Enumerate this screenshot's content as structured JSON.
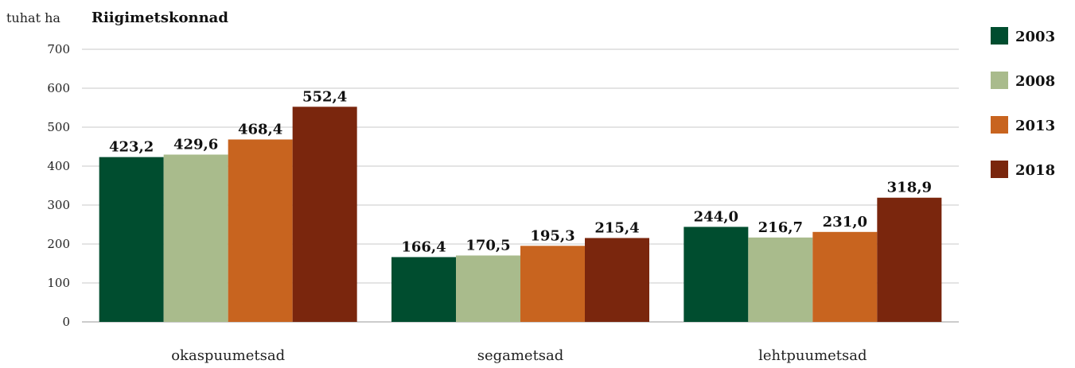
{
  "chart_data": {
    "type": "bar",
    "title": "Riigimetskonnad",
    "ylabel": "tuhat ha",
    "xlabel": "",
    "ylim": [
      0,
      700
    ],
    "yticks": [
      "0",
      "100",
      "200",
      "300",
      "400",
      "500",
      "600",
      "700"
    ],
    "grid": true,
    "legend_position": "right",
    "categories": [
      "okaspuumetsad",
      "segametsad",
      "lehtpuumetsad"
    ],
    "series": [
      {
        "name": "2003",
        "color": "#004d2f",
        "values": [
          423.2,
          166.4,
          244.0
        ],
        "labels": [
          "423,2",
          "166,4",
          "244,0"
        ]
      },
      {
        "name": "2008",
        "color": "#a9bb8c",
        "values": [
          429.6,
          170.5,
          216.7
        ],
        "labels": [
          "429,6",
          "170,5",
          "216,7"
        ]
      },
      {
        "name": "2013",
        "color": "#c8641f",
        "values": [
          468.4,
          195.3,
          231.0
        ],
        "labels": [
          "468,4",
          "195,3",
          "231,0"
        ]
      },
      {
        "name": "2018",
        "color": "#7a260d",
        "values": [
          552.4,
          215.4,
          318.9
        ],
        "labels": [
          "552,4",
          "215,4",
          "318,9"
        ]
      }
    ]
  }
}
